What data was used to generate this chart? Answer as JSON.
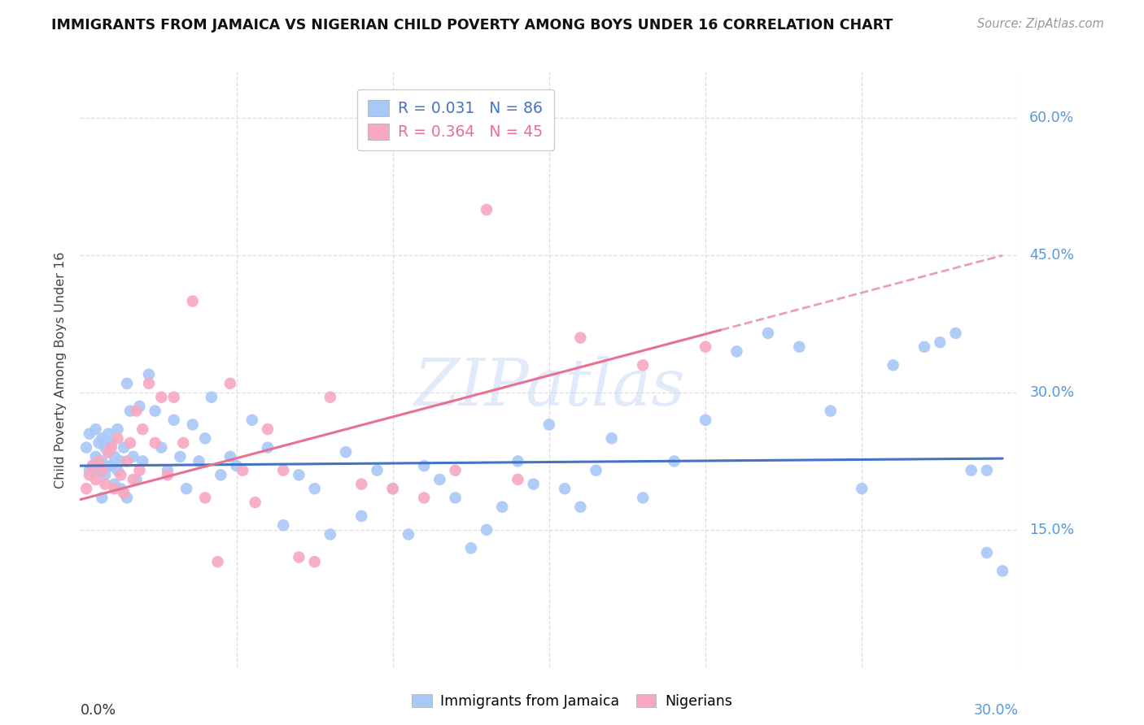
{
  "title": "IMMIGRANTS FROM JAMAICA VS NIGERIAN CHILD POVERTY AMONG BOYS UNDER 16 CORRELATION CHART",
  "source": "Source: ZipAtlas.com",
  "ylabel": "Child Poverty Among Boys Under 16",
  "xlim": [
    0.0,
    0.3
  ],
  "ylim": [
    0.0,
    0.65
  ],
  "blue_color": "#a8c8f8",
  "pink_color": "#f8a8c0",
  "blue_line_color": "#4472c4",
  "pink_line_color": "#e87090",
  "pink_dash_color": "#e8a0b8",
  "axis_label_color": "#5599dd",
  "title_color": "#111111",
  "source_color": "#999999",
  "watermark_color": "#ccddf8",
  "grid_color": "#dddddd",
  "ylabel_color": "#444444",
  "jamaica_x": [
    0.002,
    0.003,
    0.004,
    0.005,
    0.005,
    0.006,
    0.006,
    0.007,
    0.007,
    0.008,
    0.008,
    0.009,
    0.009,
    0.01,
    0.01,
    0.011,
    0.011,
    0.012,
    0.012,
    0.013,
    0.013,
    0.014,
    0.015,
    0.016,
    0.017,
    0.018,
    0.019,
    0.02,
    0.022,
    0.024,
    0.026,
    0.028,
    0.03,
    0.032,
    0.034,
    0.036,
    0.038,
    0.04,
    0.042,
    0.045,
    0.048,
    0.05,
    0.055,
    0.06,
    0.065,
    0.07,
    0.075,
    0.08,
    0.085,
    0.09,
    0.095,
    0.1,
    0.105,
    0.11,
    0.115,
    0.12,
    0.125,
    0.13,
    0.135,
    0.14,
    0.145,
    0.15,
    0.155,
    0.16,
    0.165,
    0.17,
    0.18,
    0.19,
    0.2,
    0.21,
    0.22,
    0.23,
    0.24,
    0.25,
    0.26,
    0.27,
    0.275,
    0.28,
    0.285,
    0.29,
    0.29,
    0.295,
    0.003,
    0.007,
    0.01,
    0.015
  ],
  "jamaica_y": [
    0.24,
    0.255,
    0.22,
    0.26,
    0.23,
    0.245,
    0.215,
    0.25,
    0.225,
    0.24,
    0.21,
    0.235,
    0.255,
    0.245,
    0.22,
    0.23,
    0.2,
    0.215,
    0.26,
    0.225,
    0.195,
    0.24,
    0.31,
    0.28,
    0.23,
    0.205,
    0.285,
    0.225,
    0.32,
    0.28,
    0.24,
    0.215,
    0.27,
    0.23,
    0.195,
    0.265,
    0.225,
    0.25,
    0.295,
    0.21,
    0.23,
    0.22,
    0.27,
    0.24,
    0.155,
    0.21,
    0.195,
    0.145,
    0.235,
    0.165,
    0.215,
    0.195,
    0.145,
    0.22,
    0.205,
    0.185,
    0.13,
    0.15,
    0.175,
    0.225,
    0.2,
    0.265,
    0.195,
    0.175,
    0.215,
    0.25,
    0.185,
    0.225,
    0.27,
    0.345,
    0.365,
    0.35,
    0.28,
    0.195,
    0.33,
    0.35,
    0.355,
    0.365,
    0.215,
    0.215,
    0.125,
    0.105,
    0.215,
    0.185,
    0.22,
    0.185
  ],
  "nigerian_x": [
    0.002,
    0.003,
    0.004,
    0.005,
    0.006,
    0.007,
    0.008,
    0.009,
    0.01,
    0.011,
    0.012,
    0.013,
    0.014,
    0.015,
    0.016,
    0.017,
    0.018,
    0.019,
    0.02,
    0.022,
    0.024,
    0.026,
    0.028,
    0.03,
    0.033,
    0.036,
    0.04,
    0.044,
    0.048,
    0.052,
    0.056,
    0.06,
    0.065,
    0.07,
    0.075,
    0.08,
    0.09,
    0.1,
    0.11,
    0.12,
    0.13,
    0.14,
    0.16,
    0.18,
    0.2
  ],
  "nigerian_y": [
    0.195,
    0.21,
    0.22,
    0.205,
    0.225,
    0.215,
    0.2,
    0.235,
    0.24,
    0.195,
    0.25,
    0.21,
    0.19,
    0.225,
    0.245,
    0.205,
    0.28,
    0.215,
    0.26,
    0.31,
    0.245,
    0.295,
    0.21,
    0.295,
    0.245,
    0.4,
    0.185,
    0.115,
    0.31,
    0.215,
    0.18,
    0.26,
    0.215,
    0.12,
    0.115,
    0.295,
    0.2,
    0.195,
    0.185,
    0.215,
    0.5,
    0.205,
    0.36,
    0.33,
    0.35
  ],
  "jam_line_x0": 0.0,
  "jam_line_x1": 0.295,
  "jam_line_y0": 0.22,
  "jam_line_y1": 0.228,
  "nig_line_x0": 0.0,
  "nig_line_x1": 0.295,
  "nig_line_y0": 0.183,
  "nig_line_y1": 0.45
}
